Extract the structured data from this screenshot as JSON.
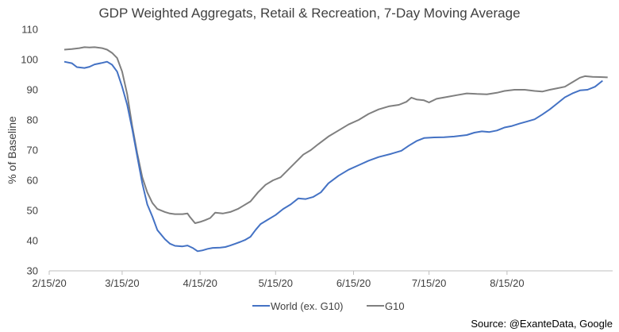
{
  "chart_data": {
    "type": "line",
    "title": "GDP Weighted Aggregats, Retail & Recreation, 7-Day Moving Average",
    "ylabel": "% of Baseline",
    "xlabel": "",
    "ylim": [
      30,
      110
    ],
    "yticks": [
      30,
      40,
      50,
      60,
      70,
      80,
      90,
      100,
      110
    ],
    "xlim": [
      "2020-02-15",
      "2020-09-26"
    ],
    "xticks": [
      "2/15/20",
      "3/15/20",
      "4/15/20",
      "5/15/20",
      "6/15/20",
      "7/15/20",
      "8/15/20"
    ],
    "xtick_dates": [
      "2020-02-15",
      "2020-03-15",
      "2020-04-15",
      "2020-05-15",
      "2020-06-15",
      "2020-07-15",
      "2020-08-15"
    ],
    "grid": false,
    "legend_position": "bottom",
    "source": "Source: @ExanteData, Google",
    "series": [
      {
        "name": "World (ex. G10)",
        "color": "#4472c4",
        "points": [
          [
            "2020-02-21",
            99.3
          ],
          [
            "2020-02-24",
            98.8
          ],
          [
            "2020-02-26",
            97.5
          ],
          [
            "2020-02-29",
            97.2
          ],
          [
            "2020-03-02",
            97.6
          ],
          [
            "2020-03-04",
            98.4
          ],
          [
            "2020-03-07",
            98.9
          ],
          [
            "2020-03-09",
            99.3
          ],
          [
            "2020-03-11",
            98.3
          ],
          [
            "2020-03-13",
            96.0
          ],
          [
            "2020-03-15",
            91.0
          ],
          [
            "2020-03-17",
            85.0
          ],
          [
            "2020-03-19",
            77.0
          ],
          [
            "2020-03-21",
            68.0
          ],
          [
            "2020-03-23",
            59.0
          ],
          [
            "2020-03-25",
            52.0
          ],
          [
            "2020-03-27",
            48.0
          ],
          [
            "2020-03-29",
            43.5
          ],
          [
            "2020-04-01",
            40.5
          ],
          [
            "2020-04-03",
            39.0
          ],
          [
            "2020-04-05",
            38.3
          ],
          [
            "2020-04-08",
            38.1
          ],
          [
            "2020-04-10",
            38.4
          ],
          [
            "2020-04-12",
            37.6
          ],
          [
            "2020-04-14",
            36.5
          ],
          [
            "2020-04-16",
            36.8
          ],
          [
            "2020-04-18",
            37.3
          ],
          [
            "2020-04-20",
            37.6
          ],
          [
            "2020-04-23",
            37.7
          ],
          [
            "2020-04-25",
            37.9
          ],
          [
            "2020-04-27",
            38.4
          ],
          [
            "2020-04-29",
            39.0
          ],
          [
            "2020-05-01",
            39.6
          ],
          [
            "2020-05-03",
            40.3
          ],
          [
            "2020-05-05",
            41.3
          ],
          [
            "2020-05-07",
            43.5
          ],
          [
            "2020-05-09",
            45.5
          ],
          [
            "2020-05-12",
            47.0
          ],
          [
            "2020-05-15",
            48.5
          ],
          [
            "2020-05-18",
            50.5
          ],
          [
            "2020-05-21",
            52.0
          ],
          [
            "2020-05-24",
            54.0
          ],
          [
            "2020-05-27",
            53.8
          ],
          [
            "2020-05-30",
            54.5
          ],
          [
            "2020-06-02",
            56.0
          ],
          [
            "2020-06-05",
            59.0
          ],
          [
            "2020-06-09",
            61.5
          ],
          [
            "2020-06-13",
            63.5
          ],
          [
            "2020-06-17",
            65.0
          ],
          [
            "2020-06-21",
            66.5
          ],
          [
            "2020-06-25",
            67.7
          ],
          [
            "2020-06-30",
            68.8
          ],
          [
            "2020-07-04",
            69.8
          ],
          [
            "2020-07-07",
            71.5
          ],
          [
            "2020-07-10",
            73.0
          ],
          [
            "2020-07-13",
            74.0
          ],
          [
            "2020-07-17",
            74.2
          ],
          [
            "2020-07-21",
            74.3
          ],
          [
            "2020-07-25",
            74.5
          ],
          [
            "2020-07-30",
            75.0
          ],
          [
            "2020-08-02",
            75.8
          ],
          [
            "2020-08-05",
            76.2
          ],
          [
            "2020-08-08",
            76.0
          ],
          [
            "2020-08-11",
            76.5
          ],
          [
            "2020-08-14",
            77.5
          ],
          [
            "2020-08-17",
            78.0
          ],
          [
            "2020-08-20",
            78.8
          ],
          [
            "2020-08-23",
            79.5
          ],
          [
            "2020-08-26",
            80.2
          ],
          [
            "2020-08-29",
            81.8
          ],
          [
            "2020-09-01",
            83.5
          ],
          [
            "2020-09-04",
            85.5
          ],
          [
            "2020-09-07",
            87.5
          ],
          [
            "2020-09-10",
            88.8
          ],
          [
            "2020-09-13",
            89.8
          ],
          [
            "2020-09-16",
            90.0
          ],
          [
            "2020-09-19",
            91.0
          ],
          [
            "2020-09-22",
            93.0
          ]
        ]
      },
      {
        "name": "G10",
        "color": "#7f7f7f",
        "points": [
          [
            "2020-02-21",
            103.3
          ],
          [
            "2020-02-24",
            103.5
          ],
          [
            "2020-02-27",
            103.8
          ],
          [
            "2020-02-29",
            104.1
          ],
          [
            "2020-03-02",
            104.0
          ],
          [
            "2020-03-04",
            104.1
          ],
          [
            "2020-03-07",
            103.8
          ],
          [
            "2020-03-09",
            103.3
          ],
          [
            "2020-03-11",
            102.2
          ],
          [
            "2020-03-13",
            100.5
          ],
          [
            "2020-03-15",
            96.0
          ],
          [
            "2020-03-17",
            88.5
          ],
          [
            "2020-03-19",
            78.0
          ],
          [
            "2020-03-21",
            69.0
          ],
          [
            "2020-03-23",
            61.0
          ],
          [
            "2020-03-25",
            56.0
          ],
          [
            "2020-03-27",
            52.5
          ],
          [
            "2020-03-29",
            50.5
          ],
          [
            "2020-04-01",
            49.5
          ],
          [
            "2020-04-03",
            49.0
          ],
          [
            "2020-04-05",
            48.8
          ],
          [
            "2020-04-08",
            48.8
          ],
          [
            "2020-04-10",
            49.0
          ],
          [
            "2020-04-11",
            47.8
          ],
          [
            "2020-04-13",
            45.8
          ],
          [
            "2020-04-15",
            46.2
          ],
          [
            "2020-04-17",
            46.8
          ],
          [
            "2020-04-19",
            47.5
          ],
          [
            "2020-04-21",
            49.3
          ],
          [
            "2020-04-24",
            49.0
          ],
          [
            "2020-04-27",
            49.5
          ],
          [
            "2020-04-30",
            50.5
          ],
          [
            "2020-05-02",
            51.5
          ],
          [
            "2020-05-05",
            53.0
          ],
          [
            "2020-05-08",
            56.0
          ],
          [
            "2020-05-11",
            58.5
          ],
          [
            "2020-05-14",
            60.0
          ],
          [
            "2020-05-17",
            61.0
          ],
          [
            "2020-05-20",
            63.5
          ],
          [
            "2020-05-23",
            66.0
          ],
          [
            "2020-05-26",
            68.5
          ],
          [
            "2020-05-29",
            70.0
          ],
          [
            "2020-06-01",
            72.0
          ],
          [
            "2020-06-05",
            74.5
          ],
          [
            "2020-06-09",
            76.5
          ],
          [
            "2020-06-13",
            78.5
          ],
          [
            "2020-06-17",
            80.0
          ],
          [
            "2020-06-21",
            82.0
          ],
          [
            "2020-06-25",
            83.5
          ],
          [
            "2020-06-29",
            84.5
          ],
          [
            "2020-07-03",
            85.0
          ],
          [
            "2020-07-06",
            86.0
          ],
          [
            "2020-07-08",
            87.4
          ],
          [
            "2020-07-10",
            86.8
          ],
          [
            "2020-07-13",
            86.5
          ],
          [
            "2020-07-15",
            85.8
          ],
          [
            "2020-07-18",
            87.0
          ],
          [
            "2020-07-22",
            87.6
          ],
          [
            "2020-07-26",
            88.2
          ],
          [
            "2020-07-30",
            88.8
          ],
          [
            "2020-08-03",
            88.6
          ],
          [
            "2020-08-07",
            88.5
          ],
          [
            "2020-08-11",
            89.0
          ],
          [
            "2020-08-14",
            89.6
          ],
          [
            "2020-08-18",
            90.0
          ],
          [
            "2020-08-22",
            90.0
          ],
          [
            "2020-08-26",
            89.6
          ],
          [
            "2020-08-29",
            89.4
          ],
          [
            "2020-09-01",
            90.0
          ],
          [
            "2020-09-04",
            90.5
          ],
          [
            "2020-09-07",
            91.0
          ],
          [
            "2020-09-10",
            92.5
          ],
          [
            "2020-09-13",
            94.0
          ],
          [
            "2020-09-15",
            94.5
          ],
          [
            "2020-09-18",
            94.3
          ],
          [
            "2020-09-21",
            94.2
          ],
          [
            "2020-09-24",
            94.1
          ]
        ]
      }
    ]
  }
}
